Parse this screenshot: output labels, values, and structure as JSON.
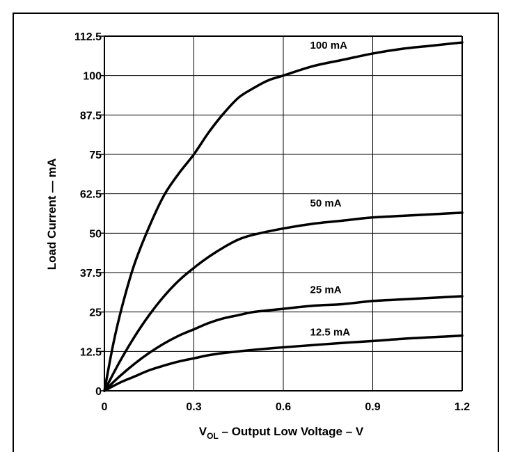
{
  "chart_data": {
    "type": "line",
    "xlabel": {
      "main": "V",
      "sub": "OL",
      "rest": " – Output Low Voltage – V"
    },
    "ylabel": "Load Current — mA",
    "xlim": [
      0,
      1.2
    ],
    "ylim": [
      0,
      112.5
    ],
    "xticks": [
      {
        "value": 0,
        "label": "0"
      },
      {
        "value": 0.3,
        "label": "0.3"
      },
      {
        "value": 0.6,
        "label": "0.6"
      },
      {
        "value": 0.9,
        "label": "0.9"
      },
      {
        "value": 1.2,
        "label": "1.2"
      }
    ],
    "yticks": [
      {
        "value": 0,
        "label": "0"
      },
      {
        "value": 12.5,
        "label": "12.5"
      },
      {
        "value": 25,
        "label": "25"
      },
      {
        "value": 37.5,
        "label": "37.5"
      },
      {
        "value": 50,
        "label": "50"
      },
      {
        "value": 62.5,
        "label": "62.5"
      },
      {
        "value": 75,
        "label": "75"
      },
      {
        "value": 87.5,
        "label": "87.5"
      },
      {
        "value": 100,
        "label": "100"
      },
      {
        "value": 112.5,
        "label": "112.5"
      }
    ],
    "grid": true,
    "series": [
      {
        "name": "100 mA",
        "label_at": [
          0.69,
          108.5
        ],
        "points": [
          [
            0,
            0
          ],
          [
            0.03,
            15
          ],
          [
            0.06,
            27
          ],
          [
            0.1,
            40
          ],
          [
            0.15,
            52
          ],
          [
            0.2,
            62
          ],
          [
            0.25,
            69
          ],
          [
            0.3,
            75
          ],
          [
            0.35,
            82
          ],
          [
            0.4,
            88
          ],
          [
            0.45,
            93
          ],
          [
            0.5,
            96
          ],
          [
            0.55,
            98.5
          ],
          [
            0.6,
            100
          ],
          [
            0.7,
            103
          ],
          [
            0.8,
            105
          ],
          [
            0.9,
            107
          ],
          [
            1.0,
            108.5
          ],
          [
            1.1,
            109.5
          ],
          [
            1.2,
            110.5
          ]
        ]
      },
      {
        "name": "50 mA",
        "label_at": [
          0.69,
          58.5
        ],
        "points": [
          [
            0,
            0
          ],
          [
            0.05,
            9
          ],
          [
            0.1,
            17
          ],
          [
            0.15,
            24
          ],
          [
            0.2,
            30
          ],
          [
            0.25,
            35
          ],
          [
            0.3,
            39
          ],
          [
            0.35,
            42.5
          ],
          [
            0.4,
            45.5
          ],
          [
            0.45,
            48
          ],
          [
            0.5,
            49.5
          ],
          [
            0.6,
            51.5
          ],
          [
            0.7,
            53
          ],
          [
            0.8,
            54
          ],
          [
            0.9,
            55
          ],
          [
            1.0,
            55.5
          ],
          [
            1.1,
            56
          ],
          [
            1.2,
            56.5
          ]
        ]
      },
      {
        "name": "25 mA",
        "label_at": [
          0.69,
          31
        ],
        "points": [
          [
            0,
            0
          ],
          [
            0.05,
            4.5
          ],
          [
            0.1,
            8.5
          ],
          [
            0.15,
            12
          ],
          [
            0.2,
            15
          ],
          [
            0.25,
            17.5
          ],
          [
            0.3,
            19.5
          ],
          [
            0.35,
            21.5
          ],
          [
            0.4,
            23
          ],
          [
            0.45,
            24
          ],
          [
            0.5,
            25
          ],
          [
            0.6,
            26
          ],
          [
            0.7,
            27
          ],
          [
            0.8,
            27.5
          ],
          [
            0.9,
            28.5
          ],
          [
            1.0,
            29
          ],
          [
            1.1,
            29.5
          ],
          [
            1.2,
            30
          ]
        ]
      },
      {
        "name": "12.5 mA",
        "label_at": [
          0.69,
          17.5
        ],
        "points": [
          [
            0,
            0
          ],
          [
            0.05,
            2.5
          ],
          [
            0.1,
            4.5
          ],
          [
            0.15,
            6.5
          ],
          [
            0.2,
            8
          ],
          [
            0.25,
            9.3
          ],
          [
            0.3,
            10.3
          ],
          [
            0.35,
            11.3
          ],
          [
            0.4,
            12
          ],
          [
            0.45,
            12.5
          ],
          [
            0.5,
            13
          ],
          [
            0.6,
            13.8
          ],
          [
            0.7,
            14.5
          ],
          [
            0.8,
            15.2
          ],
          [
            0.9,
            15.8
          ],
          [
            1.0,
            16.5
          ],
          [
            1.1,
            17
          ],
          [
            1.2,
            17.5
          ]
        ]
      }
    ]
  }
}
